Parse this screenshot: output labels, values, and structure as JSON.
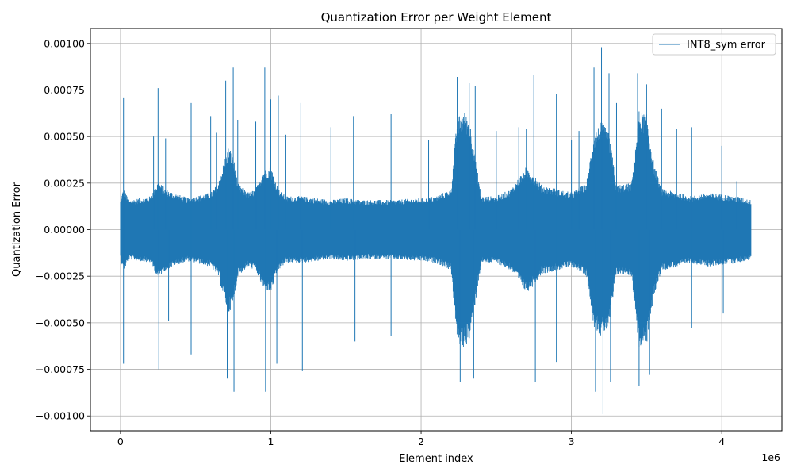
{
  "chart_data": {
    "type": "line",
    "title": "Quantization Error per Weight Element",
    "xlabel": "Element index",
    "ylabel": "Quantization Error",
    "x_offset_label": "1e6",
    "xlim": [
      -200000,
      4400000
    ],
    "ylim": [
      -0.00108,
      0.00108
    ],
    "x_ticks": [
      0,
      1000000,
      2000000,
      3000000,
      4000000
    ],
    "x_tick_labels": [
      "0",
      "1",
      "2",
      "3",
      "4"
    ],
    "y_ticks": [
      -0.001,
      -0.00075,
      -0.0005,
      -0.00025,
      0,
      0.00025,
      0.0005,
      0.00075,
      0.001
    ],
    "y_tick_labels": [
      "−0.00100",
      "−0.00075",
      "−0.00050",
      "−0.00025",
      "0.00000",
      "0.00025",
      "0.00050",
      "0.00075",
      "0.00100"
    ],
    "grid": true,
    "legend_position": "top-right",
    "series": [
      {
        "name": "INT8_sym error",
        "color": "#1f77b4",
        "x_range": [
          0,
          4194304
        ],
        "envelope": {
          "x": [
            0,
            20000,
            60000,
            200000,
            250000,
            300000,
            350000,
            450000,
            600000,
            650000,
            700000,
            720000,
            750000,
            780000,
            850000,
            900000,
            950000,
            1000000,
            1050000,
            1100000,
            1200000,
            1400000,
            1500000,
            1600000,
            1800000,
            2000000,
            2100000,
            2200000,
            2240000,
            2280000,
            2320000,
            2360000,
            2400000,
            2500000,
            2600000,
            2650000,
            2700000,
            2750000,
            2800000,
            2900000,
            3000000,
            3100000,
            3150000,
            3200000,
            3250000,
            3300000,
            3400000,
            3450000,
            3500000,
            3550000,
            3600000,
            3700000,
            3800000,
            3900000,
            4000000,
            4100000,
            4194304
          ],
          "upper": [
            0.00016,
            0.00022,
            0.00016,
            0.00018,
            0.00026,
            0.00022,
            0.0002,
            0.00017,
            0.0002,
            0.00025,
            0.0004,
            0.00045,
            0.0004,
            0.00025,
            0.0002,
            0.00022,
            0.00032,
            0.00034,
            0.00022,
            0.00018,
            0.00018,
            0.00016,
            0.00017,
            0.00016,
            0.00016,
            0.00017,
            0.00018,
            0.00022,
            0.0006,
            0.00064,
            0.0006,
            0.0004,
            0.00018,
            0.00018,
            0.00022,
            0.00028,
            0.00034,
            0.0003,
            0.00024,
            0.00022,
            0.0002,
            0.00025,
            0.00052,
            0.00058,
            0.00052,
            0.00024,
            0.00025,
            0.00064,
            0.00062,
            0.00035,
            0.00022,
            0.0002,
            0.00018,
            0.0002,
            0.00019,
            0.00018,
            0.00016
          ],
          "lower": [
            -0.00016,
            -0.00022,
            -0.00016,
            -0.00018,
            -0.00026,
            -0.00022,
            -0.0002,
            -0.00017,
            -0.0002,
            -0.00025,
            -0.0004,
            -0.00045,
            -0.0004,
            -0.00025,
            -0.0002,
            -0.00022,
            -0.00032,
            -0.00034,
            -0.00022,
            -0.00018,
            -0.00018,
            -0.00016,
            -0.00017,
            -0.00016,
            -0.00016,
            -0.00017,
            -0.00018,
            -0.00022,
            -0.0006,
            -0.00064,
            -0.0006,
            -0.0004,
            -0.00018,
            -0.00018,
            -0.00022,
            -0.00028,
            -0.00034,
            -0.0003,
            -0.00024,
            -0.00022,
            -0.0002,
            -0.00025,
            -0.00052,
            -0.00058,
            -0.00052,
            -0.00024,
            -0.00025,
            -0.00064,
            -0.00062,
            -0.00035,
            -0.00022,
            -0.0002,
            -0.00018,
            -0.0002,
            -0.00019,
            -0.00018,
            -0.00016
          ]
        },
        "spikes": [
          {
            "x": 20000,
            "y": 0.00071
          },
          {
            "x": 20000,
            "y": -0.00072
          },
          {
            "x": 220000,
            "y": 0.0005
          },
          {
            "x": 250000,
            "y": 0.00076
          },
          {
            "x": 255000,
            "y": -0.00075
          },
          {
            "x": 300000,
            "y": 0.00049
          },
          {
            "x": 320000,
            "y": -0.00049
          },
          {
            "x": 470000,
            "y": 0.00068
          },
          {
            "x": 470000,
            "y": -0.00067
          },
          {
            "x": 600000,
            "y": 0.00061
          },
          {
            "x": 640000,
            "y": 0.00052
          },
          {
            "x": 700000,
            "y": 0.0008
          },
          {
            "x": 710000,
            "y": -0.0008
          },
          {
            "x": 750000,
            "y": 0.00087
          },
          {
            "x": 755000,
            "y": -0.00087
          },
          {
            "x": 780000,
            "y": 0.00059
          },
          {
            "x": 900000,
            "y": 0.00058
          },
          {
            "x": 960000,
            "y": 0.00087
          },
          {
            "x": 965000,
            "y": -0.00087
          },
          {
            "x": 1000000,
            "y": 0.0007
          },
          {
            "x": 1050000,
            "y": 0.00072
          },
          {
            "x": 1040000,
            "y": -0.00072
          },
          {
            "x": 1100000,
            "y": 0.00051
          },
          {
            "x": 1200000,
            "y": 0.00068
          },
          {
            "x": 1210000,
            "y": -0.00076
          },
          {
            "x": 1400000,
            "y": 0.00055
          },
          {
            "x": 1550000,
            "y": 0.00061
          },
          {
            "x": 1560000,
            "y": -0.0006
          },
          {
            "x": 1800000,
            "y": 0.00062
          },
          {
            "x": 1800000,
            "y": -0.00057
          },
          {
            "x": 2050000,
            "y": 0.00048
          },
          {
            "x": 2240000,
            "y": 0.00082
          },
          {
            "x": 2260000,
            "y": -0.00082
          },
          {
            "x": 2320000,
            "y": 0.00079
          },
          {
            "x": 2360000,
            "y": 0.00077
          },
          {
            "x": 2350000,
            "y": -0.0008
          },
          {
            "x": 2500000,
            "y": 0.00053
          },
          {
            "x": 2650000,
            "y": 0.00055
          },
          {
            "x": 2700000,
            "y": 0.00054
          },
          {
            "x": 2750000,
            "y": 0.00083
          },
          {
            "x": 2760000,
            "y": -0.00082
          },
          {
            "x": 2900000,
            "y": 0.00073
          },
          {
            "x": 2900000,
            "y": -0.00071
          },
          {
            "x": 3000000,
            "y": 0.00048
          },
          {
            "x": 3050000,
            "y": 0.00053
          },
          {
            "x": 3150000,
            "y": 0.00087
          },
          {
            "x": 3160000,
            "y": -0.00087
          },
          {
            "x": 3200000,
            "y": 0.00098
          },
          {
            "x": 3210000,
            "y": -0.00099
          },
          {
            "x": 3250000,
            "y": 0.00084
          },
          {
            "x": 3260000,
            "y": -0.00082
          },
          {
            "x": 3300000,
            "y": 0.00068
          },
          {
            "x": 3440000,
            "y": 0.00084
          },
          {
            "x": 3450000,
            "y": -0.00084
          },
          {
            "x": 3500000,
            "y": 0.00078
          },
          {
            "x": 3520000,
            "y": -0.00078
          },
          {
            "x": 3600000,
            "y": 0.00065
          },
          {
            "x": 3700000,
            "y": 0.00054
          },
          {
            "x": 3800000,
            "y": 0.00055
          },
          {
            "x": 3800000,
            "y": -0.00053
          },
          {
            "x": 4000000,
            "y": 0.00045
          },
          {
            "x": 4010000,
            "y": -0.00045
          },
          {
            "x": 4100000,
            "y": 0.00026
          }
        ]
      }
    ]
  }
}
